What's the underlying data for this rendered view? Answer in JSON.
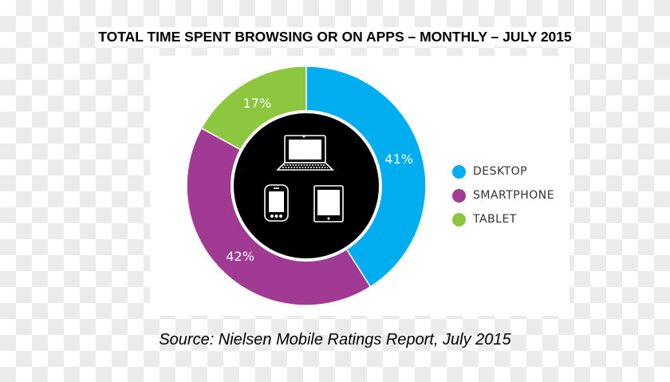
{
  "chart_data": {
    "type": "pie",
    "title": "TOTAL TIME SPENT BROWSING OR ON APPS – MONTHLY – JULY 2015",
    "donut": true,
    "categories": [
      "DESKTOP",
      "SMARTPHONE",
      "TABLET"
    ],
    "values": [
      41,
      42,
      17
    ],
    "labels": [
      "41%",
      "42%",
      "17%"
    ],
    "colors": [
      "#00adef",
      "#a13a93",
      "#8dc63f"
    ],
    "legend_position": "right",
    "center_icons": [
      "laptop-icon",
      "smartphone-icon",
      "tablet-icon"
    ],
    "source": "Source: Nielsen Mobile Ratings Report, July 2015"
  }
}
